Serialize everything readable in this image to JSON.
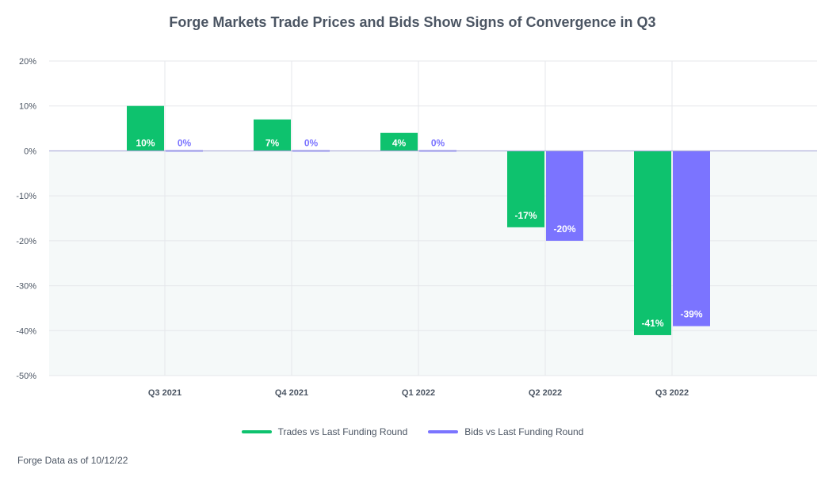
{
  "chart_data": {
    "type": "bar",
    "title": "Forge Markets Trade Prices and Bids Show Signs of Convergence in Q3",
    "categories": [
      "Q3 2021",
      "Q4 2021",
      "Q1 2022",
      "Q2 2022",
      "Q3 2022"
    ],
    "series": [
      {
        "name": "Trades vs Last Funding Round",
        "color": "#0ec26e",
        "values": [
          10,
          7,
          4,
          -17,
          -41
        ],
        "labels": [
          "10%",
          "7%",
          "4%",
          "-17%",
          "-41%"
        ]
      },
      {
        "name": "Bids vs Last Funding Round",
        "color": "#7b74ff",
        "values": [
          0,
          0,
          0,
          -20,
          -39
        ],
        "labels": [
          "0%",
          "0%",
          "0%",
          "-20%",
          "-39%"
        ]
      }
    ],
    "yticks": [
      "20%",
      "10%",
      "0%",
      "-10%",
      "-20%",
      "-30%",
      "-40%",
      "-50%"
    ],
    "ylim": [
      -50,
      20
    ],
    "xlabel": "",
    "ylabel": "",
    "legend": "bottom-center",
    "grid": true
  },
  "footer": {
    "source": "Forge Data as of 10/12/22"
  },
  "colors": {
    "negative_band": "#f5f9f9",
    "grid": "#e5e7eb",
    "zero_line": "#a9a8d8",
    "text": "#4b5563"
  }
}
